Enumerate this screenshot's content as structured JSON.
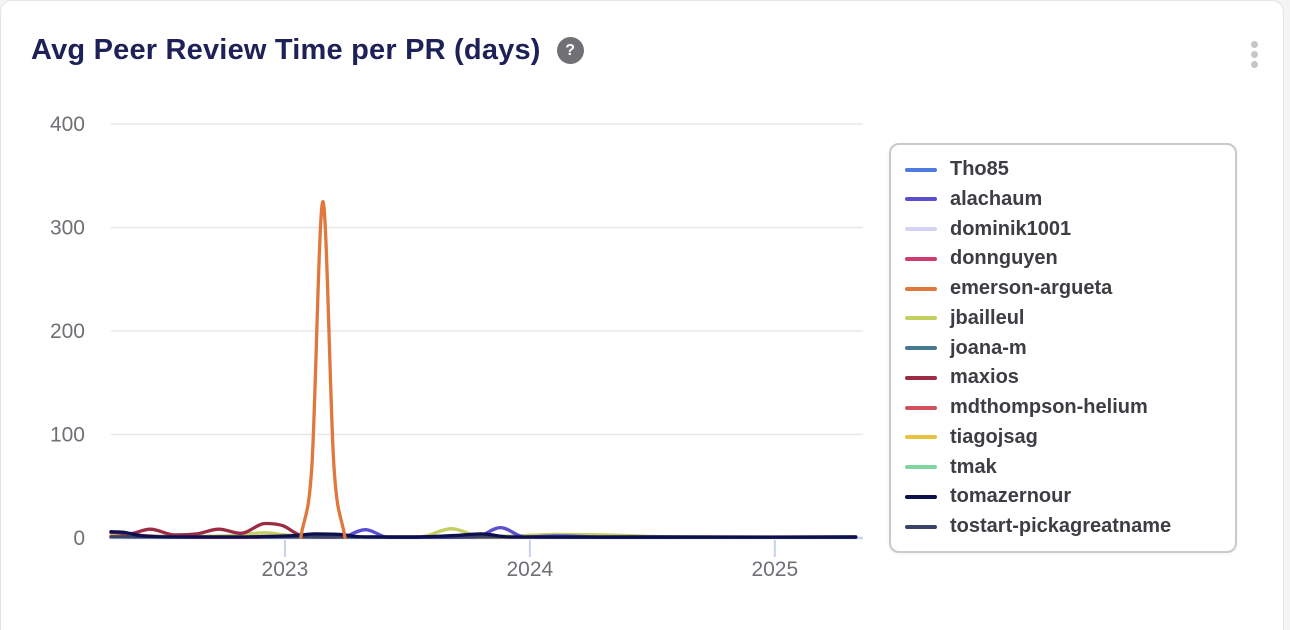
{
  "header": {
    "title": "Avg Peer Review Time per PR (days)",
    "help_icon": "?"
  },
  "colors": {
    "title": "#1d2157",
    "tick_label": "#6f6f76",
    "gridline": "#e8e8ea",
    "axis_line": "#c7d0ed",
    "legend_border": "#c9c9ce",
    "legend_text": "#3d3d43",
    "help_badge": "#717175",
    "kebab_dots": "#c6c6c9",
    "card_border": "#e5e5e8"
  },
  "chart_data": {
    "type": "line",
    "title": "Avg Peer Review Time per PR (days)",
    "xlabel": "",
    "ylabel": "",
    "xlim": [
      2022.29,
      2025.36
    ],
    "ylim": [
      0,
      400
    ],
    "yticks": [
      0,
      100,
      200,
      300,
      400
    ],
    "xticks": [
      2023,
      2024,
      2025
    ],
    "grid": "horizontal",
    "legend_position": "right",
    "draw_order": [
      "Tho85",
      "dominik1001",
      "donnguyen",
      "joana-m",
      "tiagojsag",
      "tmak",
      "mdthompson-helium",
      "jbailleul",
      "maxios",
      "alachaum",
      "tostart-pickagreatname",
      "tomazernour",
      "emerson-argueta"
    ],
    "series": [
      {
        "name": "Tho85",
        "color": "#4d7be0",
        "points": [
          [
            2023.28,
            1
          ],
          [
            2023.7,
            0.8
          ],
          [
            2024.2,
            1
          ],
          [
            2024.8,
            0.8
          ],
          [
            2025.33,
            1
          ]
        ]
      },
      {
        "name": "alachaum",
        "color": "#5a4ed2",
        "points": [
          [
            2023.24,
            0.6
          ],
          [
            2023.33,
            8
          ],
          [
            2023.42,
            0.8
          ],
          [
            2023.6,
            0.6
          ],
          [
            2023.78,
            1
          ],
          [
            2023.88,
            10
          ],
          [
            2023.98,
            1
          ],
          [
            2024.12,
            2
          ],
          [
            2024.3,
            0.8
          ],
          [
            2024.6,
            0.8
          ]
        ]
      },
      {
        "name": "dominik1001",
        "color": "#d3d3f7",
        "points": [
          [
            2023.9,
            0.8
          ],
          [
            2024.05,
            1.5
          ],
          [
            2024.2,
            0.8
          ],
          [
            2024.5,
            0.8
          ]
        ]
      },
      {
        "name": "donnguyen",
        "color": "#cf3a70",
        "points": [
          [
            2022.45,
            1.5
          ],
          [
            2022.7,
            0.8
          ],
          [
            2022.95,
            1.5
          ],
          [
            2023.2,
            0.8
          ]
        ]
      },
      {
        "name": "emerson-argueta",
        "color": "#e0773c",
        "points": [
          [
            2023.065,
            0.6
          ],
          [
            2023.11,
            70
          ],
          [
            2023.155,
            325
          ],
          [
            2023.2,
            70
          ],
          [
            2023.245,
            0.6
          ]
        ]
      },
      {
        "name": "jbailleul",
        "color": "#c3cf60",
        "points": [
          [
            2022.29,
            2
          ],
          [
            2022.5,
            1.5
          ],
          [
            2022.75,
            2
          ],
          [
            2022.92,
            5
          ],
          [
            2023.0,
            3
          ],
          [
            2023.1,
            1.5
          ],
          [
            2023.3,
            1
          ],
          [
            2023.55,
            1
          ],
          [
            2023.68,
            9
          ],
          [
            2023.8,
            1.5
          ],
          [
            2023.95,
            2
          ],
          [
            2024.1,
            3.5
          ],
          [
            2024.3,
            3
          ],
          [
            2024.5,
            1.5
          ],
          [
            2024.6,
            1
          ]
        ]
      },
      {
        "name": "joana-m",
        "color": "#49798f",
        "points": [
          [
            2022.35,
            1
          ],
          [
            2022.7,
            0.8
          ],
          [
            2023.0,
            1
          ],
          [
            2023.3,
            0.8
          ]
        ]
      },
      {
        "name": "maxios",
        "color": "#9c2b45",
        "points": [
          [
            2022.29,
            6
          ],
          [
            2022.36,
            4
          ],
          [
            2022.45,
            8.5
          ],
          [
            2022.55,
            3
          ],
          [
            2022.64,
            4
          ],
          [
            2022.73,
            8.5
          ],
          [
            2022.82,
            4.5
          ],
          [
            2022.92,
            14
          ],
          [
            2022.99,
            12
          ],
          [
            2023.06,
            3
          ],
          [
            2023.14,
            1
          ],
          [
            2023.22,
            1
          ]
        ]
      },
      {
        "name": "mdthompson-helium",
        "color": "#d4505c",
        "points": [
          [
            2022.29,
            5
          ],
          [
            2022.38,
            3
          ],
          [
            2022.5,
            1.5
          ],
          [
            2022.7,
            0.8
          ],
          [
            2022.9,
            0.8
          ]
        ]
      },
      {
        "name": "tiagojsag",
        "color": "#e7c33f",
        "points": [
          [
            2023.5,
            0.8
          ],
          [
            2023.8,
            0.8
          ],
          [
            2024.0,
            0.6
          ]
        ]
      },
      {
        "name": "tmak",
        "color": "#7fd6a3",
        "points": [
          [
            2023.95,
            0.8
          ],
          [
            2024.2,
            1.5
          ],
          [
            2024.45,
            0.8
          ],
          [
            2024.55,
            0.8
          ]
        ]
      },
      {
        "name": "tomazernour",
        "color": "#0d0f4e",
        "points": [
          [
            2022.29,
            6
          ],
          [
            2022.34,
            5.5
          ],
          [
            2022.42,
            2
          ],
          [
            2022.55,
            1
          ],
          [
            2022.8,
            1
          ],
          [
            2022.95,
            1.5
          ],
          [
            2023.05,
            2.5
          ],
          [
            2023.12,
            4
          ],
          [
            2023.22,
            3.5
          ],
          [
            2023.32,
            1
          ],
          [
            2023.5,
            0.8
          ],
          [
            2023.7,
            2.5
          ],
          [
            2023.8,
            4
          ],
          [
            2023.92,
            1
          ],
          [
            2024.2,
            0.8
          ],
          [
            2024.6,
            0.8
          ],
          [
            2025.0,
            0.8
          ],
          [
            2025.33,
            0.8
          ]
        ]
      },
      {
        "name": "tostart-pickagreatname",
        "color": "#3c4167",
        "points": [
          [
            2022.29,
            1.2
          ],
          [
            2023.0,
            1
          ],
          [
            2023.5,
            1.2
          ],
          [
            2024.0,
            1
          ],
          [
            2024.5,
            1.2
          ],
          [
            2025.0,
            1
          ],
          [
            2025.33,
            1.2
          ]
        ]
      }
    ]
  }
}
